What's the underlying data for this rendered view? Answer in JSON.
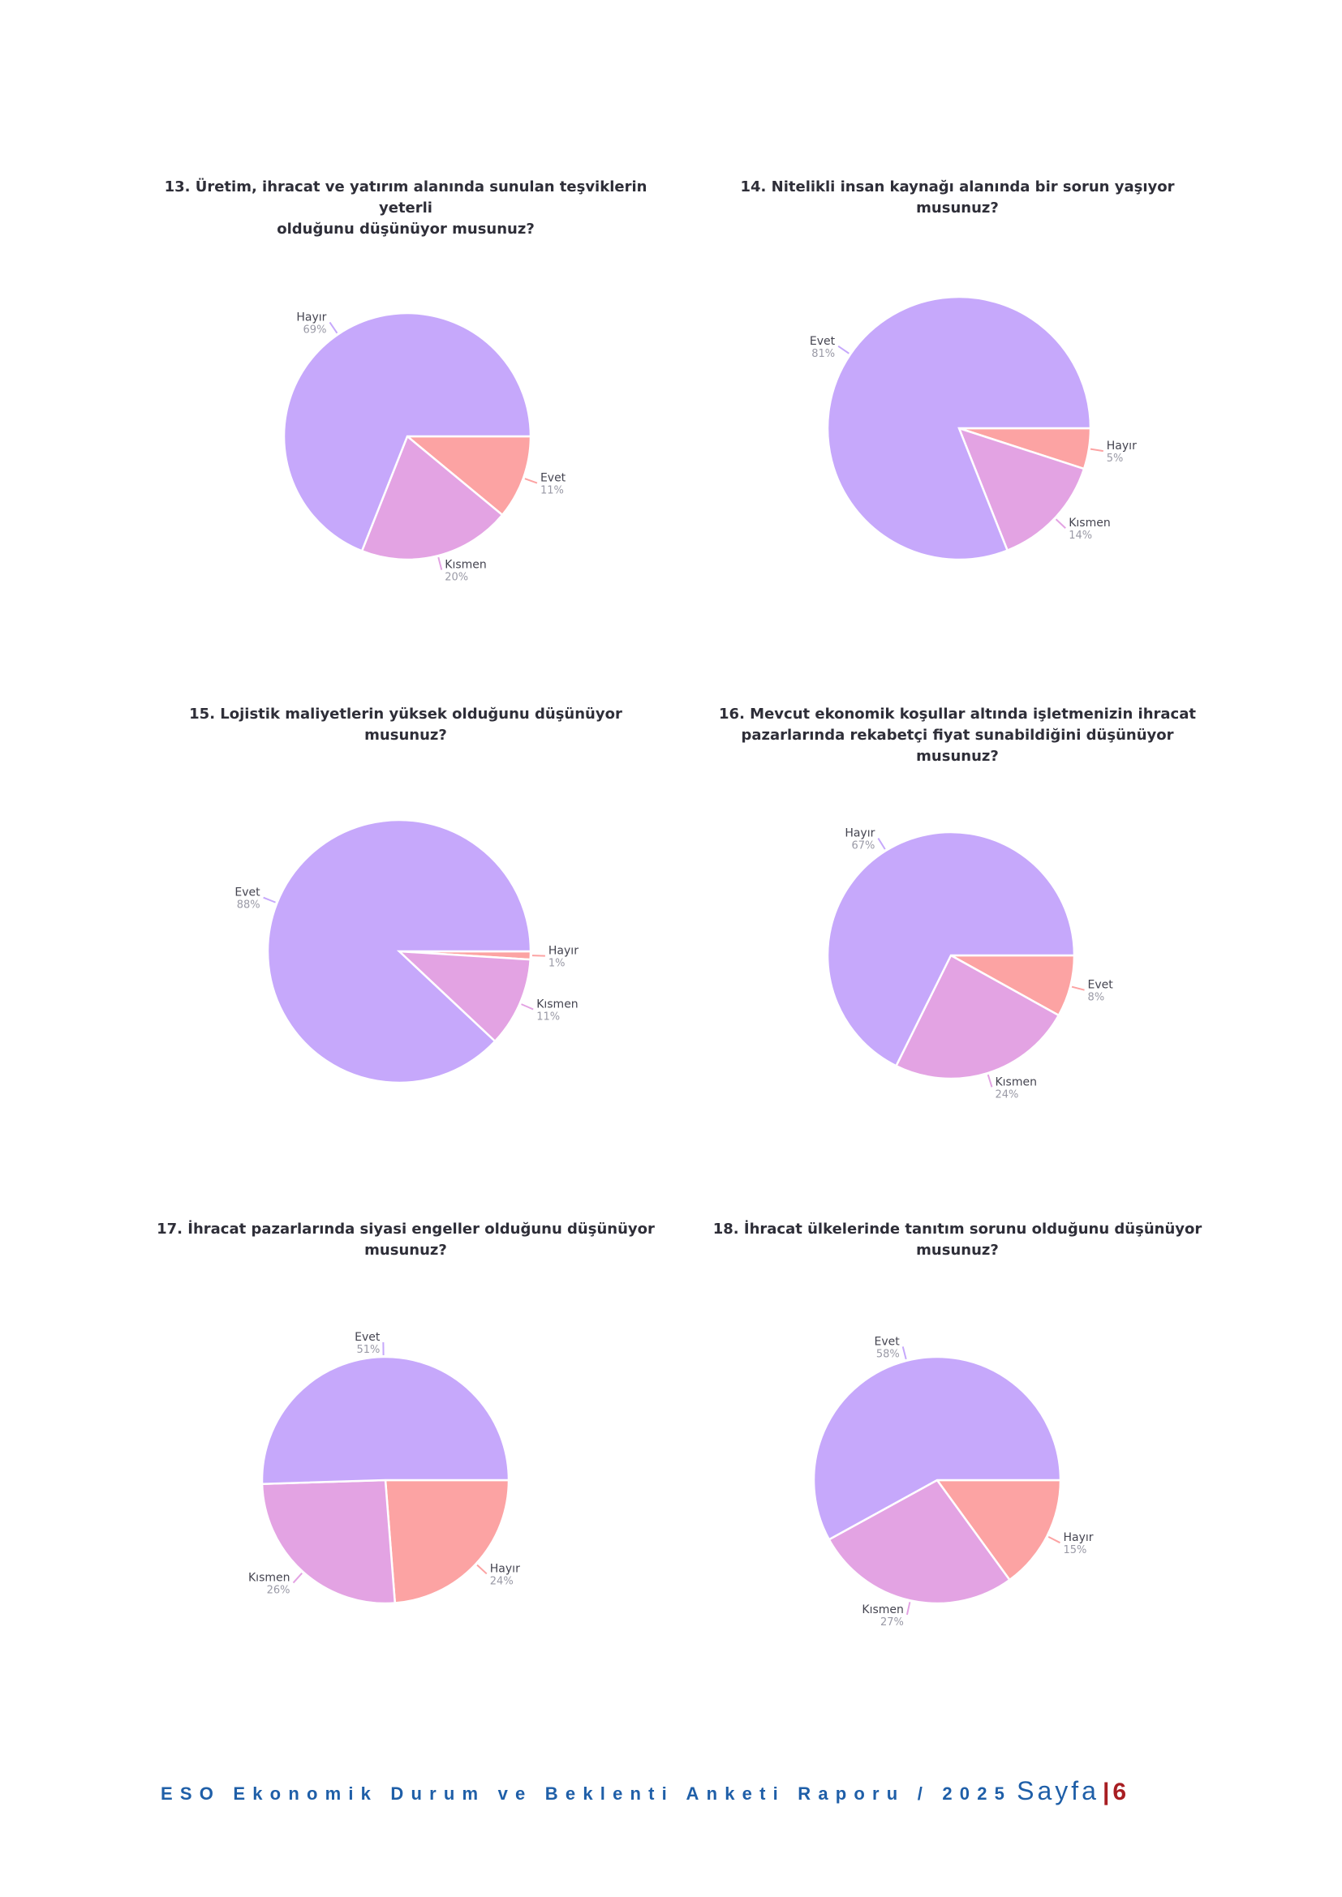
{
  "colors": {
    "evet": "#c6a8fb",
    "hayir_primary": "#c6a8fb",
    "kismen": "#e3a3e3",
    "accent": "#fca3a3"
  },
  "chart_data": [
    {
      "type": "pie",
      "title": "13. Üretim, ihracat ve yatırım alanında sunulan teşviklerin yeterli\nolduğunu düşünüyor musunuz?",
      "slices": [
        {
          "label": "Hayır",
          "value": 69,
          "pct": "69%",
          "color": "#c6a8fb"
        },
        {
          "label": "Evet",
          "value": 11,
          "pct": "11%",
          "color": "#fca3a3"
        },
        {
          "label": "Kısmen",
          "value": 20,
          "pct": "20%",
          "color": "#e3a3e3"
        }
      ]
    },
    {
      "type": "pie",
      "title": "14. Nitelikli insan kaynağı alanında bir sorun yaşıyor musunuz?",
      "slices": [
        {
          "label": "Evet",
          "value": 81,
          "pct": "81%",
          "color": "#c6a8fb"
        },
        {
          "label": "Hayır",
          "value": 5,
          "pct": "5%",
          "color": "#fca3a3"
        },
        {
          "label": "Kısmen",
          "value": 14,
          "pct": "14%",
          "color": "#e3a3e3"
        }
      ]
    },
    {
      "type": "pie",
      "title": "15. Lojistik maliyetlerin yüksek olduğunu düşünüyor musunuz?",
      "slices": [
        {
          "label": "Evet",
          "value": 88,
          "pct": "88%",
          "color": "#c6a8fb"
        },
        {
          "label": "Hayır",
          "value": 1,
          "pct": "1%",
          "color": "#fca3a3"
        },
        {
          "label": "Kısmen",
          "value": 11,
          "pct": "11%",
          "color": "#e3a3e3"
        }
      ]
    },
    {
      "type": "pie",
      "title": "16. Mevcut ekonomik koşullar altında işletmenizin ihracat\npazarlarında rekabetçi fiyat sunabildiğini düşünüyor musunuz?",
      "slices": [
        {
          "label": "Hayır",
          "value": 67,
          "pct": "67%",
          "color": "#c6a8fb"
        },
        {
          "label": "Evet",
          "value": 8,
          "pct": "8%",
          "color": "#fca3a3"
        },
        {
          "label": "Kısmen",
          "value": 24,
          "pct": "24%",
          "color": "#e3a3e3"
        }
      ]
    },
    {
      "type": "pie",
      "title": "17. İhracat pazarlarında siyasi engeller olduğunu düşünüyor\nmusunuz?",
      "slices": [
        {
          "label": "Evet",
          "value": 51,
          "pct": "51%",
          "color": "#c6a8fb"
        },
        {
          "label": "Hayır",
          "value": 24,
          "pct": "24%",
          "color": "#fca3a3"
        },
        {
          "label": "Kısmen",
          "value": 26,
          "pct": "26%",
          "color": "#e3a3e3"
        }
      ]
    },
    {
      "type": "pie",
      "title": "18. İhracat ülkelerinde tanıtım sorunu olduğunu düşünüyor\nmusunuz?",
      "slices": [
        {
          "label": "Evet",
          "value": 58,
          "pct": "58%",
          "color": "#c6a8fb"
        },
        {
          "label": "Hayır",
          "value": 15,
          "pct": "15%",
          "color": "#fca3a3"
        },
        {
          "label": "Kısmen",
          "value": 27,
          "pct": "27%",
          "color": "#e3a3e3"
        }
      ]
    }
  ],
  "footer": {
    "report": "ESO Ekonomik Durum ve Beklenti Anketi Raporu / 2025",
    "page_word": "Sayfa",
    "separator": "|",
    "page_number": "6"
  }
}
